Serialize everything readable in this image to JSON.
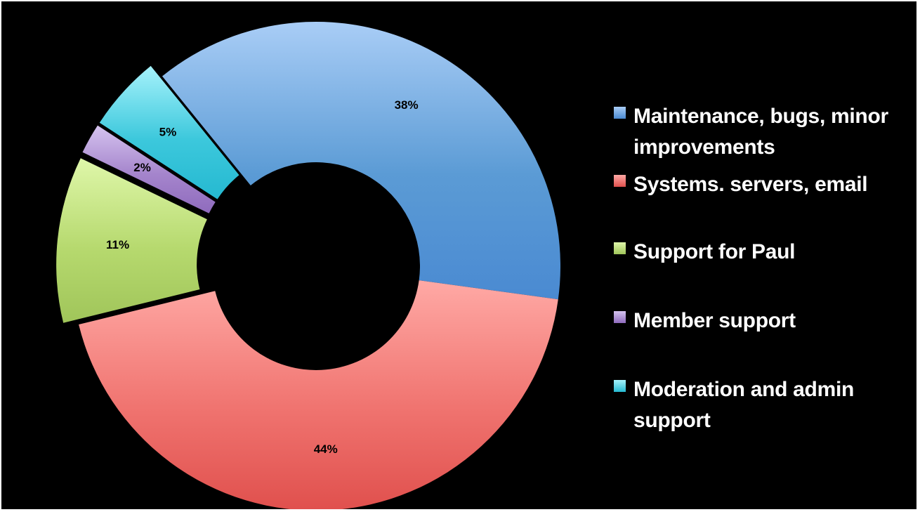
{
  "chart_data": {
    "type": "pie",
    "variant": "donut",
    "title": "",
    "slices": [
      {
        "label": "Maintenance, bugs, minor improvements",
        "value": 38,
        "display": "38%",
        "color": "#5b9bd5",
        "light": "#a9cdf6",
        "dark": "#4a8ad2",
        "exploded": false
      },
      {
        "label": "Systems. servers, email",
        "value": 44,
        "display": "44%",
        "color": "#f07470",
        "light": "#ffa9a5",
        "dark": "#e0504d",
        "exploded": false
      },
      {
        "label": "Support for Paul",
        "value": 11,
        "display": "11%",
        "color": "#b6d96e",
        "light": "#dff7aa",
        "dark": "#a0c55a",
        "exploded": true
      },
      {
        "label": "Member support",
        "value": 2,
        "display": "2%",
        "color": "#a585cc",
        "light": "#d5c3ef",
        "dark": "#8f6bbd",
        "exploded": true
      },
      {
        "label": "Moderation and admin support",
        "value": 5,
        "display": "5%",
        "color": "#3cc8dc",
        "light": "#a6f2fb",
        "dark": "#25b9d1",
        "exploded": true
      }
    ],
    "legend_position": "right",
    "background": "#000000"
  }
}
